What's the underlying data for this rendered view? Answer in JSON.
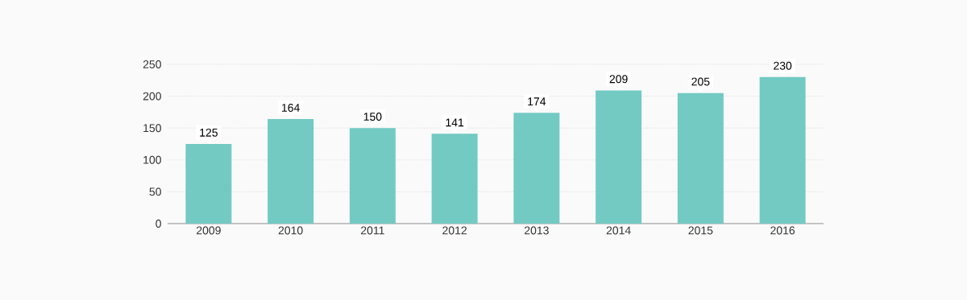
{
  "chart_data": {
    "type": "bar",
    "categories": [
      "2009",
      "2010",
      "2011",
      "2012",
      "2013",
      "2014",
      "2015",
      "2016"
    ],
    "values": [
      125,
      164,
      150,
      141,
      174,
      209,
      205,
      230
    ],
    "color": "#72cac3",
    "ylim": [
      0,
      250
    ],
    "yticks": [
      0,
      50,
      100,
      150,
      200,
      250
    ],
    "grid": "y",
    "data_labels": true
  }
}
